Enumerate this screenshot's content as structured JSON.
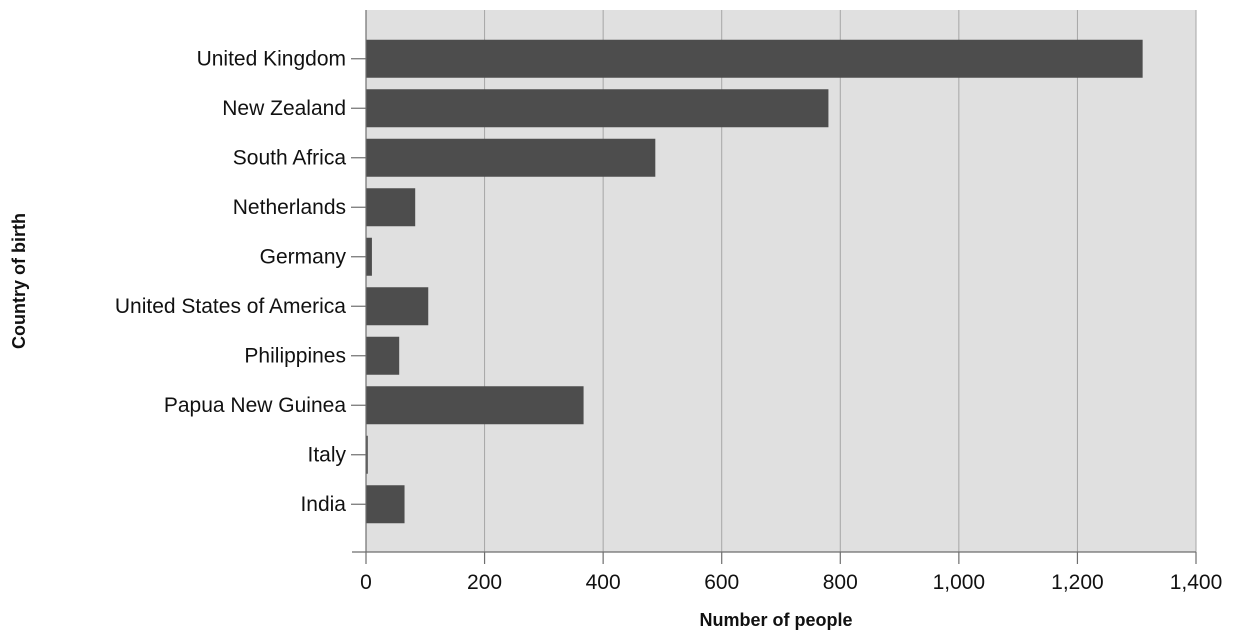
{
  "chart_data": {
    "type": "bar",
    "orientation": "horizontal",
    "categories": [
      "United Kingdom",
      "New Zealand",
      "South Africa",
      "Netherlands",
      "Germany",
      "United States of America",
      "Philippines",
      "Papua New Guinea",
      "Italy",
      "India"
    ],
    "values": [
      1310,
      780,
      488,
      83,
      10,
      105,
      56,
      367,
      3,
      65
    ],
    "xlabel": "Number of people",
    "ylabel": "Country of birth",
    "xlim": [
      0,
      1400
    ],
    "xticks": [
      0,
      200,
      400,
      600,
      800,
      1000,
      1200,
      1400
    ],
    "xtick_labels": [
      "0",
      "200",
      "400",
      "600",
      "800",
      "1,000",
      "1,200",
      "1,400"
    ],
    "grid": "vertical",
    "colors": {
      "bar": "#4d4d4d",
      "plot_background": "#e0e0e0",
      "gridline": "#a6a6a6"
    }
  }
}
